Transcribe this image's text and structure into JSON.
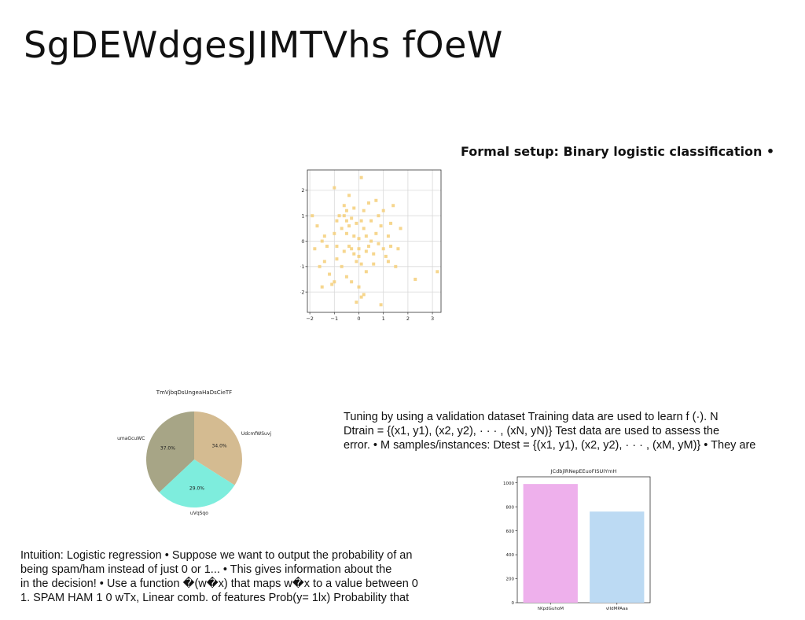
{
  "slide": {
    "title": "SgDEWdgesJIMTVhs fOeW",
    "setup_heading": "Formal setup: Binary logistic classification •",
    "tuning_lines": [
      "Tuning by using a validation dataset Training data are used to learn f (·). N",
      "Dtrain = {(x1, y1), (x2, y2), · · · , (xN, yN)} Test data are used to assess the",
      "error. • M samples/instances: Dtest = {(x1, y1), (x2, y2), · · · , (xM, yM)} • They are"
    ],
    "intuition_lines": [
      "Intuition: Logistic regression • Suppose we want to output the probability of an",
      "being spam/ham instead of just 0 or 1... • This gives information about the",
      "in the decision! • Use a function �(w�x) that maps w�x to a value between 0",
      "1. SPAM HAM 1 0 wTx, Linear comb. of features Prob(y= 1lx) Probability that"
    ]
  },
  "chart_data": [
    {
      "type": "scatter",
      "title": "",
      "xlim": [
        -2.1,
        3.35
      ],
      "ylim": [
        -2.8,
        2.8
      ],
      "xticks": [
        -2,
        -1,
        0,
        1,
        2,
        3
      ],
      "yticks": [
        -2,
        -1,
        0,
        1,
        2
      ],
      "xtick_labels": [
        "−2",
        "−1",
        "0",
        "1",
        "2",
        "3"
      ],
      "ytick_labels": [
        "−2",
        "−1",
        "0",
        "1",
        "2"
      ],
      "grid": true,
      "color": "#f5cf7a",
      "points": [
        [
          0.1,
          2.5
        ],
        [
          -1.0,
          2.1
        ],
        [
          -1.9,
          1.0
        ],
        [
          -1.7,
          0.6
        ],
        [
          -1.5,
          0.0
        ],
        [
          -1.4,
          0.2
        ],
        [
          -1.3,
          -0.2
        ],
        [
          -1.4,
          -0.8
        ],
        [
          -1.2,
          -1.3
        ],
        [
          -1.5,
          -1.8
        ],
        [
          -1.1,
          -1.7
        ],
        [
          -1.0,
          -1.6
        ],
        [
          -1.0,
          0.3
        ],
        [
          -0.9,
          0.8
        ],
        [
          -0.8,
          1.0
        ],
        [
          -0.7,
          0.5
        ],
        [
          -0.6,
          1.4
        ],
        [
          -0.6,
          1.0
        ],
        [
          -0.5,
          1.2
        ],
        [
          -0.5,
          0.8
        ],
        [
          -0.5,
          0.3
        ],
        [
          -0.4,
          0.6
        ],
        [
          -0.4,
          -0.2
        ],
        [
          -0.3,
          -0.3
        ],
        [
          -0.3,
          0.9
        ],
        [
          -0.2,
          1.3
        ],
        [
          -0.2,
          0.2
        ],
        [
          -0.2,
          -0.5
        ],
        [
          -0.1,
          -0.8
        ],
        [
          -0.1,
          0.7
        ],
        [
          0.0,
          0.1
        ],
        [
          0.0,
          -0.3
        ],
        [
          0.0,
          -0.6
        ],
        [
          0.1,
          -0.9
        ],
        [
          0.1,
          0.8
        ],
        [
          0.2,
          1.2
        ],
        [
          0.2,
          0.5
        ],
        [
          0.3,
          0.2
        ],
        [
          0.3,
          -0.4
        ],
        [
          0.4,
          -0.2
        ],
        [
          0.4,
          1.5
        ],
        [
          0.5,
          0.8
        ],
        [
          0.5,
          0.0
        ],
        [
          0.6,
          -0.5
        ],
        [
          0.6,
          -0.9
        ],
        [
          0.7,
          0.3
        ],
        [
          0.8,
          1.0
        ],
        [
          0.8,
          -0.1
        ],
        [
          0.9,
          0.6
        ],
        [
          1.0,
          -0.3
        ],
        [
          1.0,
          1.2
        ],
        [
          1.1,
          -0.6
        ],
        [
          1.2,
          -0.8
        ],
        [
          1.2,
          0.2
        ],
        [
          1.3,
          0.7
        ],
        [
          1.4,
          1.4
        ],
        [
          1.5,
          -1.0
        ],
        [
          1.6,
          -0.3
        ],
        [
          1.7,
          0.5
        ],
        [
          -0.9,
          -0.7
        ],
        [
          -0.7,
          -1.0
        ],
        [
          -0.5,
          -1.4
        ],
        [
          -0.3,
          -1.6
        ],
        [
          0.0,
          -1.8
        ],
        [
          0.1,
          -2.2
        ],
        [
          0.2,
          -2.1
        ],
        [
          -0.1,
          -2.4
        ],
        [
          0.9,
          -2.5
        ],
        [
          -0.6,
          -0.4
        ],
        [
          0.3,
          -1.2
        ],
        [
          2.3,
          -1.5
        ],
        [
          3.2,
          -1.2
        ],
        [
          -1.8,
          -0.3
        ],
        [
          -1.6,
          -1.0
        ],
        [
          1.3,
          -0.2
        ],
        [
          0.7,
          1.6
        ],
        [
          -0.4,
          1.8
        ],
        [
          -0.9,
          -0.2
        ]
      ]
    },
    {
      "type": "pie",
      "title": "TmVjbqDsUngeaHaDsCieTF",
      "slices": [
        {
          "label": "UdcmfWSuvj",
          "value": 34.0,
          "pct": "34.0%",
          "color": "#d4bb91"
        },
        {
          "label": "uVqSqo",
          "value": 29.0,
          "pct": "29.0%",
          "color": "#7eeddd"
        },
        {
          "label": "umaGcuWC",
          "value": 37.0,
          "pct": "37.0%",
          "color": "#a7a586"
        }
      ]
    },
    {
      "type": "bar",
      "title": "JCdbjlRNepEEuoFISUIYmH",
      "categories": [
        "hKpdGuhoM",
        "vlIdMPAaa"
      ],
      "values": [
        990,
        760
      ],
      "colors": [
        "#eeb0ec",
        "#bcdaf3"
      ],
      "ylim": [
        0,
        1050
      ],
      "yticks": [
        0,
        200,
        400,
        600,
        800,
        1000
      ]
    }
  ]
}
